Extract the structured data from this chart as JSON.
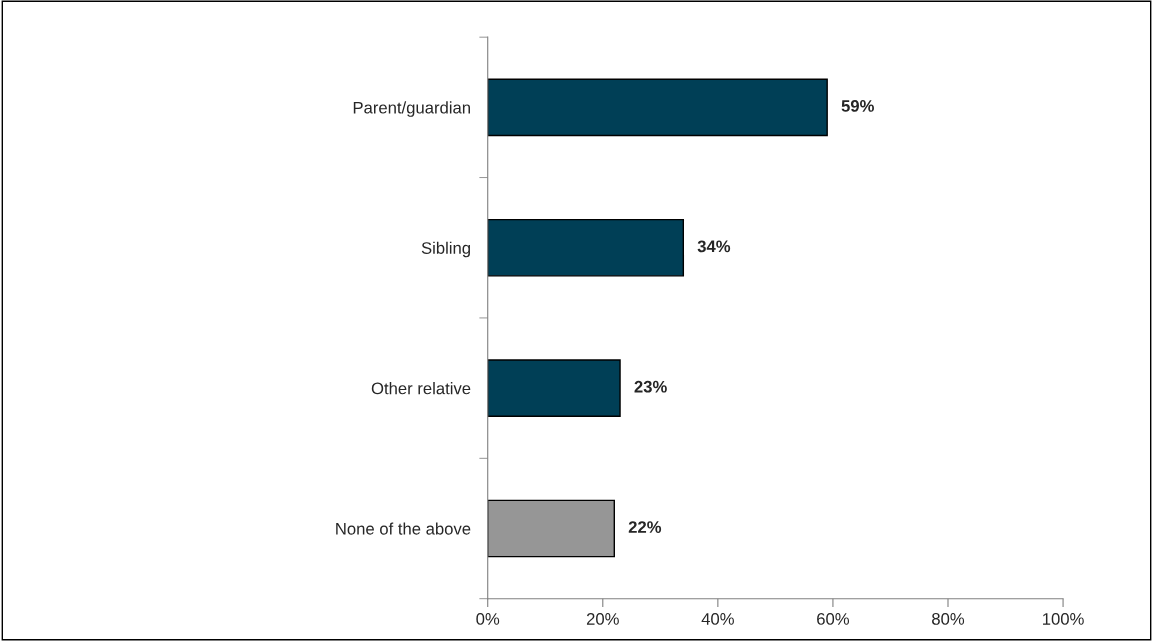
{
  "chart_data": {
    "type": "bar",
    "orientation": "horizontal",
    "categories": [
      "Parent/guardian",
      "Sibling",
      "Other relative",
      "None of the above"
    ],
    "values": [
      59,
      34,
      23,
      22
    ],
    "colors": [
      "#003f56",
      "#003f56",
      "#003f56",
      "#969696"
    ],
    "value_labels": [
      "59%",
      "34%",
      "23%",
      "22%"
    ],
    "xlim": [
      0,
      100
    ],
    "xticks": [
      {
        "value": 0,
        "label": "0%"
      },
      {
        "value": 20,
        "label": "20%"
      },
      {
        "value": 40,
        "label": "40%"
      },
      {
        "value": 60,
        "label": "60%"
      },
      {
        "value": 80,
        "label": "80%"
      },
      {
        "value": 100,
        "label": "100%"
      }
    ],
    "grid": false,
    "legend": false
  }
}
